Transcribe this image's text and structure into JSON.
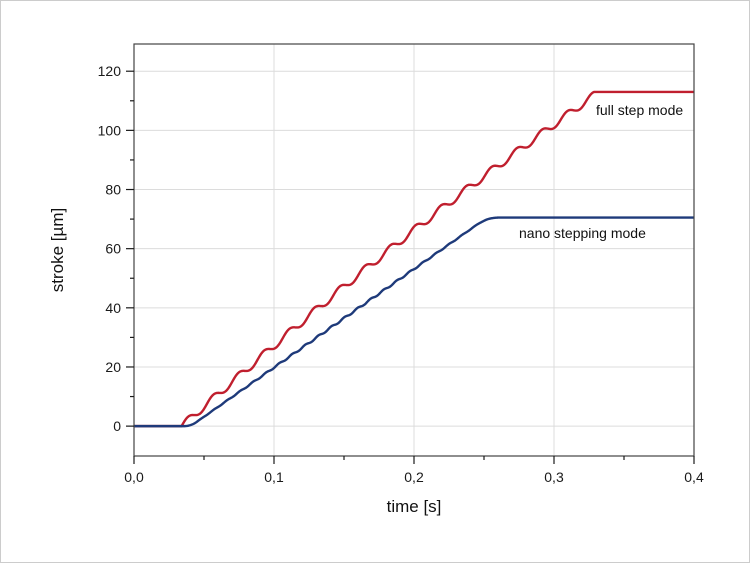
{
  "figure": {
    "background": "#ffffff",
    "border_color": "#cccccc"
  },
  "chart_data": {
    "type": "line",
    "title": "",
    "xlabel": "time [s]",
    "ylabel": "stroke [µm]",
    "xlim": [
      0,
      0.4
    ],
    "ylim": [
      -10.1,
      129.2
    ],
    "grid": {
      "show": true,
      "color": "#dcdcdc"
    },
    "frame_color": "#444444",
    "tick_color": "#1a1a1a",
    "text_color": "#1a1a1a",
    "x_ticks": {
      "major_values": [
        0,
        0.1,
        0.2,
        0.3,
        0.4
      ],
      "major_labels": [
        "0,0",
        "0,1",
        "0,2",
        "0,3",
        "0,4"
      ],
      "minor_values": [
        0.05,
        0.15,
        0.25,
        0.35
      ]
    },
    "y_ticks": {
      "major_values": [
        0,
        20,
        40,
        60,
        80,
        100,
        120
      ],
      "major_labels": [
        "0",
        "20",
        "40",
        "60",
        "80",
        "100",
        "120"
      ],
      "minor_values": [
        10,
        30,
        50,
        70,
        90,
        110
      ]
    },
    "series": [
      {
        "name": "full step mode",
        "color": "#c01f2e",
        "stroke_width": 2.4,
        "model": {
          "kind": "stepped_ramp",
          "t_start": 0.034,
          "t_end": 0.332,
          "v_start": 0,
          "v_end": 113,
          "steps": 16.5,
          "ripple_amplitude": 1.25,
          "shape_bulge": 0.03
        },
        "summary_points": [
          [
            0,
            0
          ],
          [
            0.034,
            0
          ],
          [
            0.1,
            26
          ],
          [
            0.15,
            45
          ],
          [
            0.2,
            62
          ],
          [
            0.23,
            78
          ],
          [
            0.27,
            90
          ],
          [
            0.3,
            100
          ],
          [
            0.332,
            113
          ],
          [
            0.4,
            113
          ]
        ]
      },
      {
        "name": "nano stepping mode",
        "color": "#1e3a7a",
        "stroke_width": 2.4,
        "model": {
          "kind": "eased_ramp",
          "t_start": 0.036,
          "t_end": 0.26,
          "v_start": 0,
          "v_end": 70.5,
          "ease_in": 0.04,
          "ease_out": 0.07,
          "ripple_amplitude": 0.3,
          "ripple_cycles": 24
        },
        "summary_points": [
          [
            0,
            0
          ],
          [
            0.036,
            0
          ],
          [
            0.1,
            19
          ],
          [
            0.15,
            36
          ],
          [
            0.2,
            53
          ],
          [
            0.26,
            70.5
          ],
          [
            0.4,
            70.5
          ]
        ]
      }
    ],
    "annotations": [
      {
        "text": "full step mode",
        "x": 0.33,
        "y": 107,
        "anchor": "start"
      },
      {
        "text": "nano stepping mode",
        "x": 0.275,
        "y": 65.4,
        "anchor": "start"
      }
    ],
    "legend": {
      "position": "none"
    }
  }
}
